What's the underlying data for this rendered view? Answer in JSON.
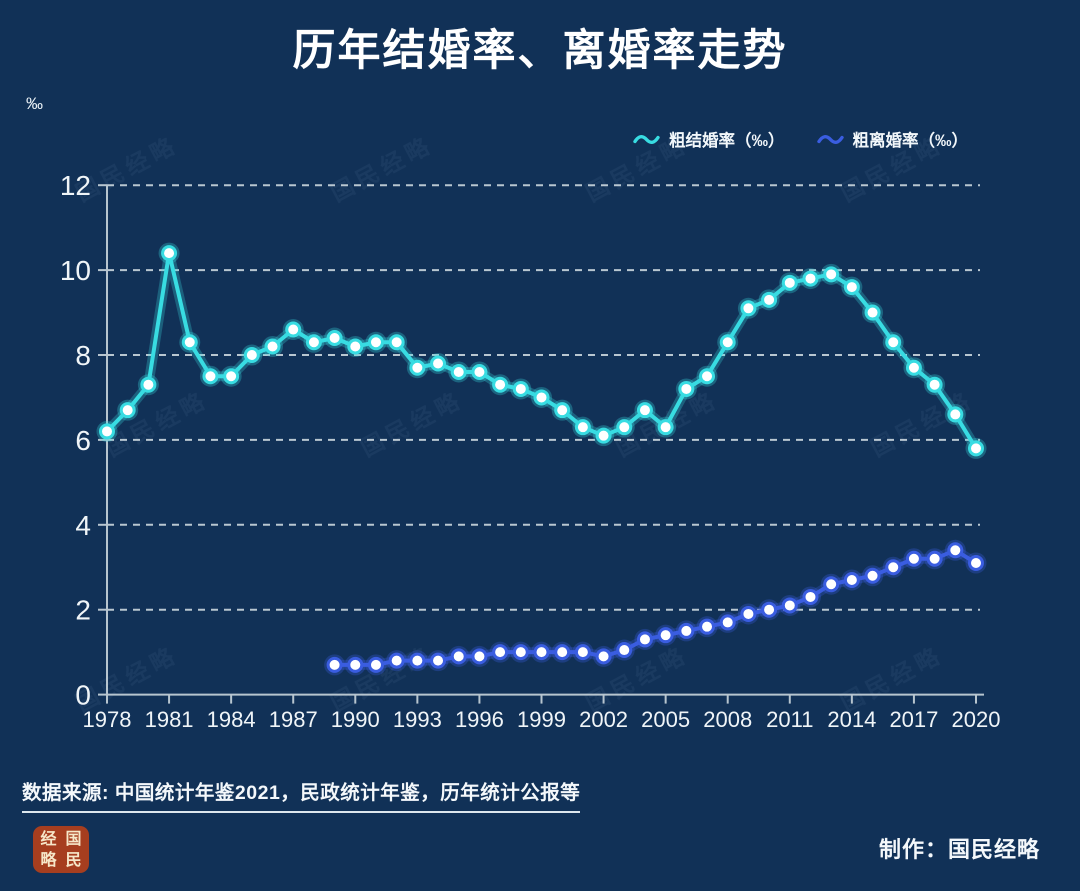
{
  "page": {
    "background": "#113157"
  },
  "chart_data": {
    "type": "line",
    "title": "历年结婚率、离婚率走势",
    "unit_label": "‰",
    "xlabel": "",
    "ylabel": "‰",
    "xlim": [
      1978,
      2020
    ],
    "ylim": [
      0,
      12
    ],
    "x_ticks": [
      1978,
      1981,
      1984,
      1987,
      1990,
      1993,
      1996,
      1999,
      2002,
      2005,
      2008,
      2011,
      2014,
      2017,
      2020
    ],
    "y_ticks": [
      0,
      2,
      4,
      6,
      8,
      10,
      12
    ],
    "grid": "horizontal-dashed",
    "legend_position": "top-right",
    "series": [
      {
        "id": "marriage-rate",
        "name": "粗结婚率（‰）",
        "color": "#38dce2",
        "start_year": 1978,
        "values": [
          6.2,
          6.7,
          7.3,
          10.4,
          8.3,
          7.5,
          7.5,
          8.0,
          8.2,
          8.6,
          8.3,
          8.4,
          8.2,
          8.3,
          8.3,
          7.7,
          7.8,
          7.6,
          7.6,
          7.3,
          7.2,
          7.0,
          6.7,
          6.3,
          6.1,
          6.3,
          6.7,
          6.3,
          7.2,
          7.5,
          8.3,
          9.1,
          9.3,
          9.7,
          9.8,
          9.9,
          9.6,
          9.0,
          8.3,
          7.7,
          7.3,
          6.6,
          5.8
        ]
      },
      {
        "id": "divorce-rate",
        "name": "粗离婚率（‰）",
        "color": "#3a5de0",
        "start_year": 1989,
        "values": [
          0.7,
          0.7,
          0.7,
          0.8,
          0.8,
          0.8,
          0.9,
          0.9,
          1.0,
          1.0,
          1.0,
          1.0,
          1.0,
          0.9,
          1.05,
          1.3,
          1.4,
          1.5,
          1.6,
          1.7,
          1.9,
          2.0,
          2.1,
          2.3,
          2.6,
          2.7,
          2.8,
          3.0,
          3.2,
          3.2,
          3.4,
          3.1
        ]
      }
    ]
  },
  "footer": {
    "source": "数据来源: 中国统计年鉴2021，民政统计年鉴，历年统计公报等",
    "credit": "制作：国民经略",
    "watermark": "国民经略",
    "logo_chars": [
      "经",
      "国",
      "略",
      "民"
    ],
    "logo_color": "#a63e1f"
  }
}
